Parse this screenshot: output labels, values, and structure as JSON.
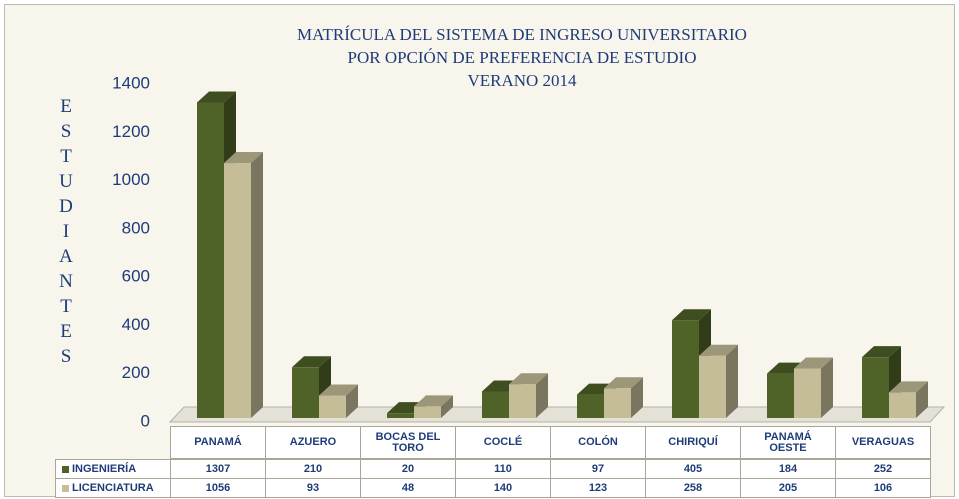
{
  "chart_data": {
    "type": "bar3d",
    "title": [
      "MATRÍCULA DEL SISTEMA DE INGRESO UNIVERSITARIO",
      "POR OPCIÓN DE PREFERENCIA DE ESTUDIO",
      "VERANO 2014"
    ],
    "y_label": "ESTUDIANTES",
    "categories": [
      "PANAMÁ",
      "AZUERO",
      "BOCAS DEL TORO",
      "COCLÉ",
      "COLÓN",
      "CHIRIQUÍ",
      "PANAMÁ OESTE",
      "VERAGUAS"
    ],
    "series": [
      {
        "name": "INGENIERÍA",
        "color": "#4f6228",
        "values": [
          1307,
          210,
          20,
          110,
          97,
          405,
          184,
          252
        ]
      },
      {
        "name": "LICENCIATURA",
        "color": "#c4bd97",
        "values": [
          1056,
          93,
          48,
          140,
          123,
          258,
          205,
          106
        ]
      }
    ],
    "ylim": [
      0,
      1400
    ],
    "yticks": [
      0,
      200,
      400,
      600,
      800,
      1000,
      1200,
      1400
    ],
    "grid": false,
    "data_table": true
  }
}
